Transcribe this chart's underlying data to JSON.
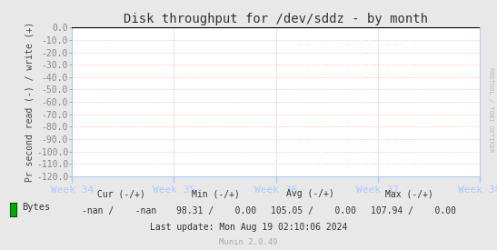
{
  "title": "Disk throughput for /dev/sddz - by month",
  "ylabel": "Pr second read (-) / write (+)",
  "xlabel_ticks": [
    "Week 34",
    "Week 35",
    "Week 36",
    "Week 37",
    "Week 38"
  ],
  "ylim": [
    -120,
    0
  ],
  "yticks": [
    0.0,
    -10.0,
    -20.0,
    -30.0,
    -40.0,
    -50.0,
    -60.0,
    -70.0,
    -80.0,
    -90.0,
    -100.0,
    -110.0,
    -120.0
  ],
  "ytick_labels": [
    "0.0",
    "-10.0",
    "-20.0",
    "-30.0",
    "-40.0",
    "-50.0",
    "-60.0",
    "-70.0",
    "-80.0",
    "-90.0",
    "-100.0",
    "-110.0",
    "-120.0"
  ],
  "bg_color": "#e8e8e8",
  "plot_bg_color": "#ffffff",
  "grid_color_h": "#ffaaaa",
  "grid_color_v": "#ddaaaa",
  "line_color": "#000000",
  "right_label": "RRDTOOL / TOBI OETIKER",
  "right_label_color": "#bbbbbb",
  "legend_label": "Bytes",
  "legend_color": "#00aa00",
  "legend_border_color": "#005500",
  "tick_color": "#aaccff",
  "spine_color": "#aaccff",
  "title_fontsize": 10,
  "stats_fontsize": 7,
  "ylabel_fontsize": 7,
  "xtick_fontsize": 8,
  "ytick_fontsize": 7,
  "cur_header": "Cur (-/+)",
  "min_header": "Min (-/+)",
  "avg_header": "Avg (-/+)",
  "max_header": "Max (-/+)",
  "cur_val": "-nan /    -nan",
  "min_val": "98.31 /    0.00",
  "avg_val": "105.05 /    0.00",
  "max_val": "107.94 /    0.00",
  "last_update": "Last update: Mon Aug 19 02:10:06 2024",
  "munin_label": "Munin 2.0.49"
}
